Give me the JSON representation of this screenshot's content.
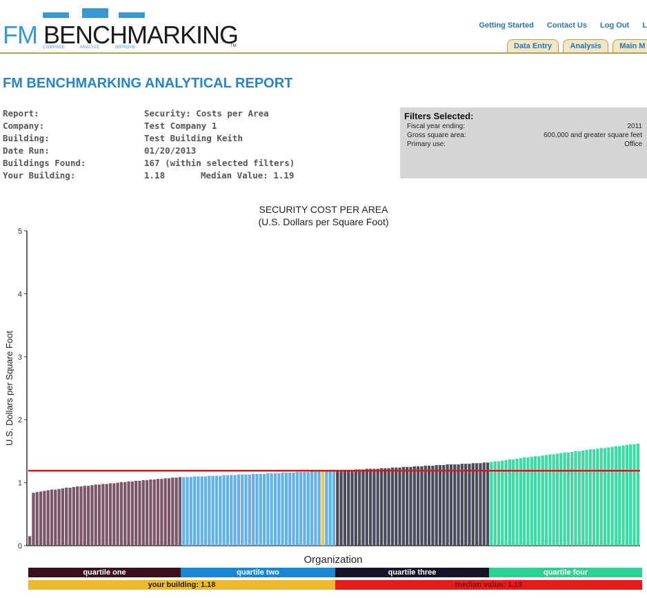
{
  "header": {
    "logo_fm": "FM",
    "logo_rest": "BENCHMARKING",
    "logo_tagline": "COMPARE ANALYZE IMPROVE",
    "logo_tm": "TM",
    "links": [
      "Getting Started",
      "Contact Us",
      "Log Out",
      "L"
    ],
    "tabs": [
      "Data Entry",
      "Analysis",
      "Main M"
    ]
  },
  "report": {
    "title": "FM BENCHMARKING ANALYTICAL REPORT",
    "rows": [
      {
        "label": "Report:",
        "value": "Security: Costs per Area"
      },
      {
        "label": "Company:",
        "value": "Test Company 1"
      },
      {
        "label": "Building:",
        "value": "Test Building Keith"
      },
      {
        "label": "Date Run:",
        "value": "01/20/2013"
      },
      {
        "label": "Buildings Found:",
        "value": "167 (within selected filters)"
      },
      {
        "label": "Your Building:",
        "value": "1.18",
        "value2": "Median Value: 1.19"
      }
    ]
  },
  "filters": {
    "title": "Filters Selected:",
    "rows": [
      {
        "label": "Fiscal year ending:",
        "value": "2011"
      },
      {
        "label": "Gross square area:",
        "value": "600,000 and greater square feet"
      },
      {
        "label": "Primary use:",
        "value": "Office"
      }
    ]
  },
  "legend": {
    "quartiles": [
      "quartile one",
      "quartile two",
      "quartile three",
      "quartile four"
    ],
    "your_building": "your building: 1.18",
    "median": "median value: 1.19"
  },
  "colors": {
    "q1": "#7a5668",
    "q2": "#63b3e6",
    "q3": "#4a4d5c",
    "q4": "#40d9a3",
    "your_bar": "#f2c14e",
    "median_line": "#d11b1b",
    "leg_q1": "#3b0f20",
    "leg_q2": "#1a85d2",
    "leg_q3": "#141426",
    "leg_q4": "#31cf93",
    "leg_your": "#f0ba26",
    "leg_median": "#ea1a1a"
  },
  "chart_data": {
    "type": "bar",
    "title": "SECURITY COST PER AREA",
    "subtitle": "(U.S. Dollars per Square Foot)",
    "xlabel": "Organization",
    "ylabel": "U.S. Dollars per Square Foot",
    "ylim": [
      0,
      5
    ],
    "yticks": [
      0,
      1,
      2,
      3,
      4,
      5
    ],
    "median": 1.19,
    "your_building": 1.18,
    "count": 167,
    "quartile_ranges": [
      {
        "name": "quartile one",
        "min": 0.15,
        "max": 1.09
      },
      {
        "name": "quartile two",
        "min": 1.09,
        "max": 1.19
      },
      {
        "name": "quartile three",
        "min": 1.19,
        "max": 1.32
      },
      {
        "name": "quartile four",
        "min": 1.33,
        "max": 1.62
      }
    ]
  }
}
